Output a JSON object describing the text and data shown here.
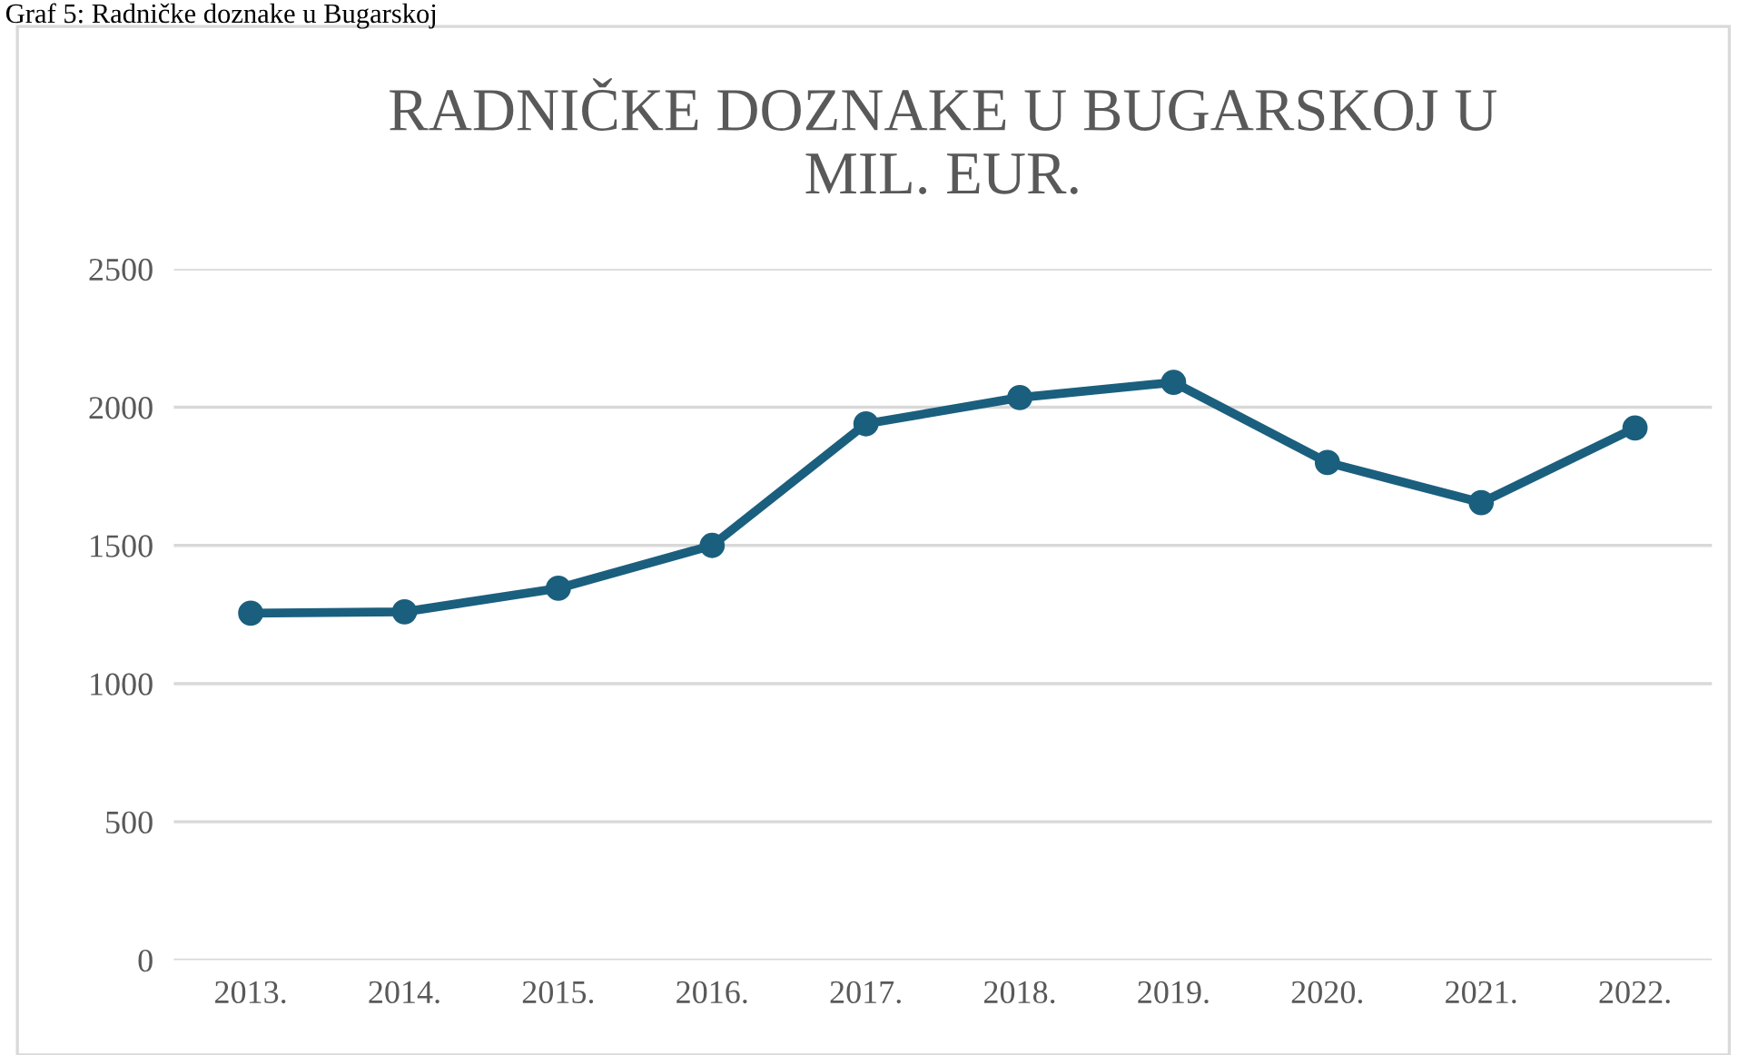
{
  "chart_data": {
    "type": "line",
    "title": "RADNIČKE DOZNAKE U BUGARSKOJ U\nMIL. EUR.",
    "annotations": [
      "Graf 5: Radničke doznake u Bugarskoj"
    ],
    "categories": [
      "2013.",
      "2014.",
      "2015.",
      "2016.",
      "2017.",
      "2018.",
      "2019.",
      "2020.",
      "2021.",
      "2022."
    ],
    "series": [
      {
        "color": "#1b5f7e",
        "values": [
          1255,
          1260,
          1345,
          1500,
          1940,
          2035,
          2090,
          1800,
          1655,
          1925
        ]
      }
    ],
    "ylim": [
      0,
      2500
    ],
    "yticks": [
      0,
      500,
      1000,
      1500,
      2000,
      2500
    ],
    "grid": "y",
    "marker": "circle",
    "line_style": "solid",
    "legend": false
  }
}
